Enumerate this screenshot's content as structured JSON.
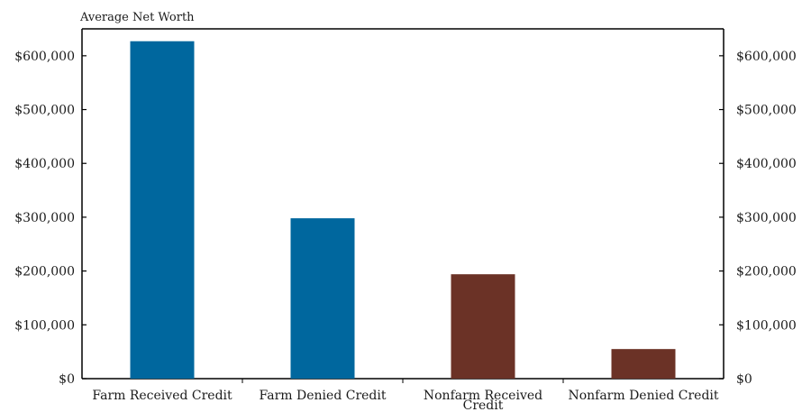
{
  "chart_data": {
    "type": "bar",
    "title": "",
    "ylabel": "Average Net Worth",
    "xlabel": "",
    "categories": [
      "Farm Received Credit",
      "Farm Denied Credit",
      "Nonfarm Received Credit",
      "Nonfarm Denied Credit"
    ],
    "values": [
      627000,
      298000,
      194000,
      55000
    ],
    "bar_colors": [
      "#00679e",
      "#00679e",
      "#6b3226",
      "#6b3226"
    ],
    "ylim": [
      0,
      650000
    ],
    "y_ticks": [
      0,
      100000,
      200000,
      300000,
      400000,
      500000,
      600000
    ],
    "y_tick_labels": [
      "$0",
      "$100,000",
      "$200,000",
      "$300,000",
      "$400,000",
      "$500,000",
      "$600,000"
    ],
    "right_axis": true,
    "grid": false,
    "legend": "none"
  }
}
